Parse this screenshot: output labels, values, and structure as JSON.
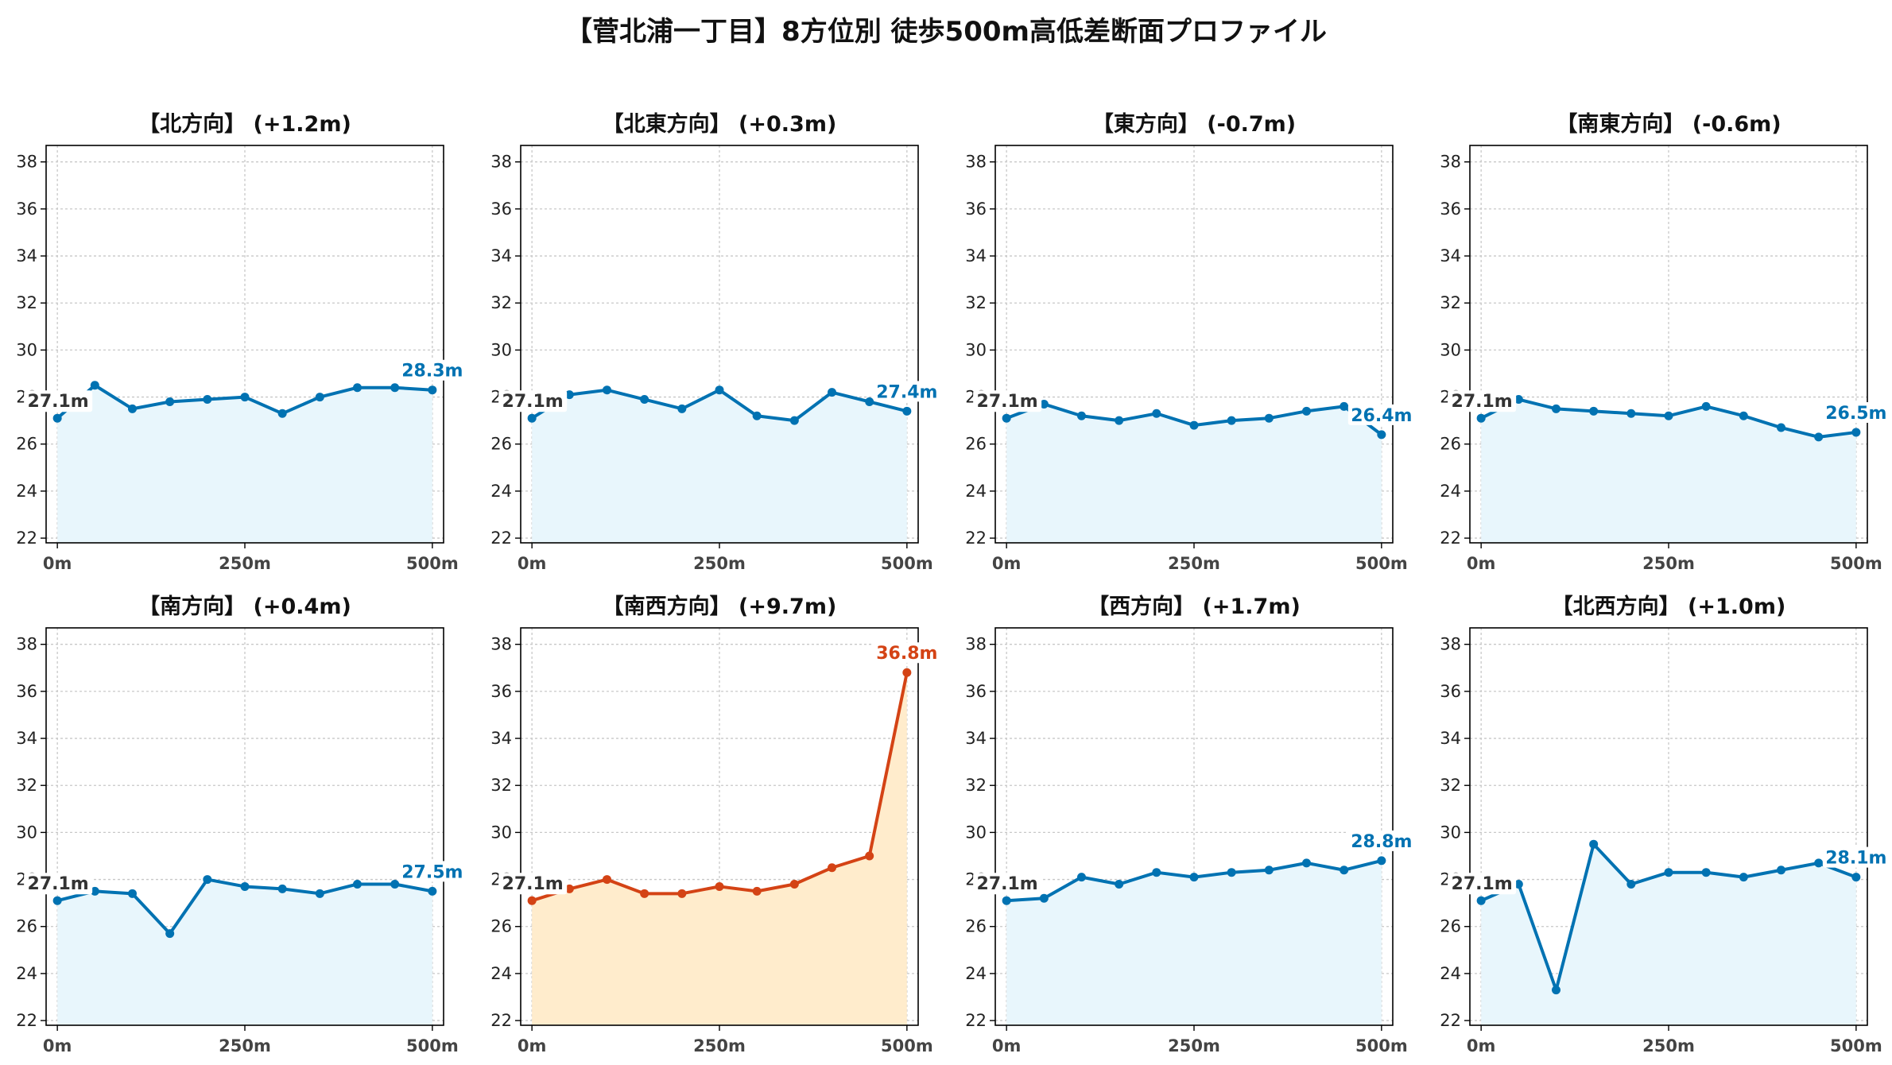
{
  "title": "【菅北浦一丁目】8方位別 徒歩500m高低差断面プロファイル",
  "colors": {
    "normal_line": "#0072B2",
    "normal_fill": "#E8F6FC",
    "highlight_line": "#D44315",
    "highlight_fill": "#FFECCC",
    "grid": "#c8c8c8"
  },
  "chart_data": [
    {
      "type": "line",
      "title": "【北方向】 (+1.2m)",
      "x": [
        0,
        50,
        100,
        150,
        200,
        250,
        300,
        350,
        400,
        450,
        500
      ],
      "values": [
        27.1,
        28.5,
        27.5,
        27.8,
        27.9,
        28.0,
        27.3,
        28.0,
        28.4,
        28.4,
        28.3
      ],
      "start_label": "27.1m",
      "end_label": "28.3m",
      "highlight": false,
      "xticks": [
        "0m",
        "250m",
        "500m"
      ],
      "yticks": [
        22,
        24,
        26,
        28,
        30,
        32,
        34,
        36,
        38
      ],
      "ylim": [
        21.8,
        38.7
      ],
      "xlim": [
        -15,
        515
      ],
      "grid": true
    },
    {
      "type": "line",
      "title": "【北東方向】 (+0.3m)",
      "x": [
        0,
        50,
        100,
        150,
        200,
        250,
        300,
        350,
        400,
        450,
        500
      ],
      "values": [
        27.1,
        28.1,
        28.3,
        27.9,
        27.5,
        28.3,
        27.2,
        27.0,
        28.2,
        27.8,
        27.4
      ],
      "start_label": "27.1m",
      "end_label": "27.4m",
      "highlight": false,
      "xticks": [
        "0m",
        "250m",
        "500m"
      ],
      "yticks": [
        22,
        24,
        26,
        28,
        30,
        32,
        34,
        36,
        38
      ],
      "ylim": [
        21.8,
        38.7
      ],
      "xlim": [
        -15,
        515
      ],
      "grid": true
    },
    {
      "type": "line",
      "title": "【東方向】 (-0.7m)",
      "x": [
        0,
        50,
        100,
        150,
        200,
        250,
        300,
        350,
        400,
        450,
        500
      ],
      "values": [
        27.1,
        27.7,
        27.2,
        27.0,
        27.3,
        26.8,
        27.0,
        27.1,
        27.4,
        27.6,
        26.4
      ],
      "start_label": "27.1m",
      "end_label": "26.4m",
      "highlight": false,
      "xticks": [
        "0m",
        "250m",
        "500m"
      ],
      "yticks": [
        22,
        24,
        26,
        28,
        30,
        32,
        34,
        36,
        38
      ],
      "ylim": [
        21.8,
        38.7
      ],
      "xlim": [
        -15,
        515
      ],
      "grid": true
    },
    {
      "type": "line",
      "title": "【南東方向】 (-0.6m)",
      "x": [
        0,
        50,
        100,
        150,
        200,
        250,
        300,
        350,
        400,
        450,
        500
      ],
      "values": [
        27.1,
        27.9,
        27.5,
        27.4,
        27.3,
        27.2,
        27.6,
        27.2,
        26.7,
        26.3,
        26.5
      ],
      "start_label": "27.1m",
      "end_label": "26.5m",
      "highlight": false,
      "xticks": [
        "0m",
        "250m",
        "500m"
      ],
      "yticks": [
        22,
        24,
        26,
        28,
        30,
        32,
        34,
        36,
        38
      ],
      "ylim": [
        21.8,
        38.7
      ],
      "xlim": [
        -15,
        515
      ],
      "grid": true
    },
    {
      "type": "line",
      "title": "【南方向】 (+0.4m)",
      "x": [
        0,
        50,
        100,
        150,
        200,
        250,
        300,
        350,
        400,
        450,
        500
      ],
      "values": [
        27.1,
        27.5,
        27.4,
        25.7,
        28.0,
        27.7,
        27.6,
        27.4,
        27.8,
        27.8,
        27.5
      ],
      "start_label": "27.1m",
      "end_label": "27.5m",
      "highlight": false,
      "xticks": [
        "0m",
        "250m",
        "500m"
      ],
      "yticks": [
        22,
        24,
        26,
        28,
        30,
        32,
        34,
        36,
        38
      ],
      "ylim": [
        21.8,
        38.7
      ],
      "xlim": [
        -15,
        515
      ],
      "grid": true
    },
    {
      "type": "line",
      "title": "【南西方向】 (+9.7m)",
      "x": [
        0,
        50,
        100,
        150,
        200,
        250,
        300,
        350,
        400,
        450,
        500
      ],
      "values": [
        27.1,
        27.6,
        28.0,
        27.4,
        27.4,
        27.7,
        27.5,
        27.8,
        28.5,
        29.0,
        36.8
      ],
      "start_label": "27.1m",
      "end_label": "36.8m",
      "highlight": true,
      "xticks": [
        "0m",
        "250m",
        "500m"
      ],
      "yticks": [
        22,
        24,
        26,
        28,
        30,
        32,
        34,
        36,
        38
      ],
      "ylim": [
        21.8,
        38.7
      ],
      "xlim": [
        -15,
        515
      ],
      "grid": true
    },
    {
      "type": "line",
      "title": "【西方向】 (+1.7m)",
      "x": [
        0,
        50,
        100,
        150,
        200,
        250,
        300,
        350,
        400,
        450,
        500
      ],
      "values": [
        27.1,
        27.2,
        28.1,
        27.8,
        28.3,
        28.1,
        28.3,
        28.4,
        28.7,
        28.4,
        28.8
      ],
      "start_label": "27.1m",
      "end_label": "28.8m",
      "highlight": false,
      "xticks": [
        "0m",
        "250m",
        "500m"
      ],
      "yticks": [
        22,
        24,
        26,
        28,
        30,
        32,
        34,
        36,
        38
      ],
      "ylim": [
        21.8,
        38.7
      ],
      "xlim": [
        -15,
        515
      ],
      "grid": true
    },
    {
      "type": "line",
      "title": "【北西方向】 (+1.0m)",
      "x": [
        0,
        50,
        100,
        150,
        200,
        250,
        300,
        350,
        400,
        450,
        500
      ],
      "values": [
        27.1,
        27.8,
        23.3,
        29.5,
        27.8,
        28.3,
        28.3,
        28.1,
        28.4,
        28.7,
        28.1
      ],
      "start_label": "27.1m",
      "end_label": "28.1m",
      "highlight": false,
      "xticks": [
        "0m",
        "250m",
        "500m"
      ],
      "yticks": [
        22,
        24,
        26,
        28,
        30,
        32,
        34,
        36,
        38
      ],
      "ylim": [
        21.8,
        38.7
      ],
      "xlim": [
        -15,
        515
      ],
      "grid": true
    }
  ]
}
